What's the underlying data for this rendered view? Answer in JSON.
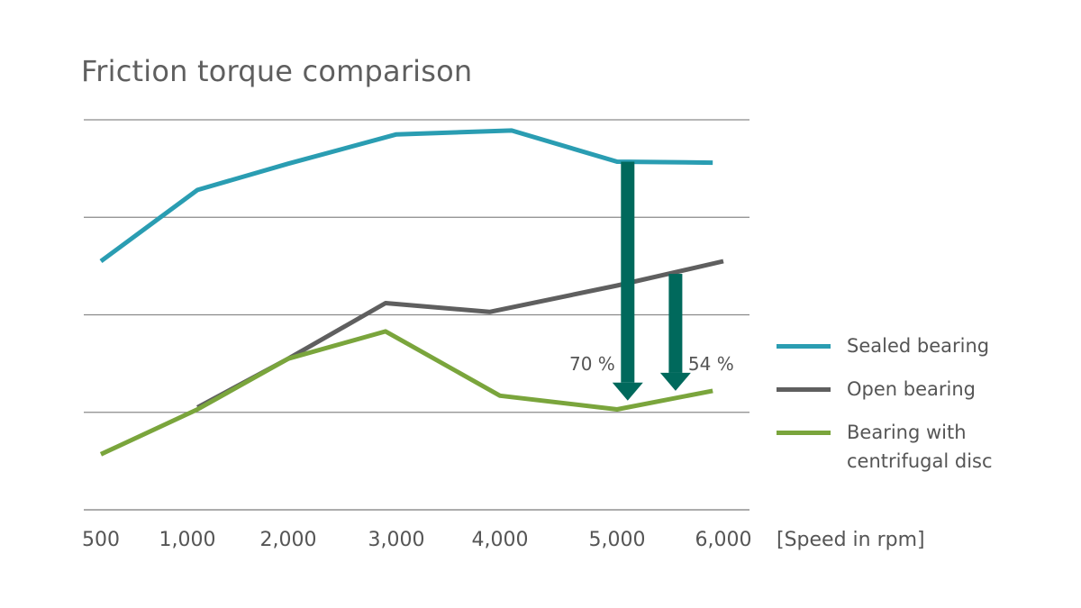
{
  "chart_data": {
    "type": "line",
    "title": "Friction torque comparison",
    "xlabel": "[Speed in rpm]",
    "ylabel": "",
    "categories": [
      "500",
      "1,000",
      "2,000",
      "3,000",
      "4,000",
      "5,000",
      "6,000"
    ],
    "x": [
      500,
      1000,
      2000,
      3000,
      4000,
      5000,
      6000
    ],
    "ylim": [
      0,
      4
    ],
    "y_ticks": [
      0,
      1,
      2,
      3,
      4
    ],
    "y_tick_labels_shown": false,
    "grid": true,
    "legend_position": "right",
    "series": [
      {
        "name": "Sealed bearing",
        "color": "#2a9db2",
        "x": [
          500,
          1100,
          2000,
          3000,
          4100,
          5000,
          5900
        ],
        "values": [
          2.55,
          3.28,
          3.55,
          3.85,
          3.89,
          3.57,
          3.56
        ]
      },
      {
        "name": "Open bearing",
        "color": "#5f5f5f",
        "x": [
          1100,
          2000,
          2900,
          3900,
          5000,
          6000
        ],
        "values": [
          1.05,
          1.55,
          2.12,
          2.03,
          2.3,
          2.55
        ]
      },
      {
        "name": "Bearing with centrifugal disc",
        "color": "#7aa53c",
        "x": [
          500,
          1100,
          2000,
          2900,
          4000,
          5000,
          5900
        ],
        "values": [
          0.57,
          1.03,
          1.55,
          1.83,
          1.17,
          1.03,
          1.22
        ]
      }
    ],
    "annotations": [
      {
        "label": "70 %",
        "x": 5100,
        "from": 3.57,
        "to": 1.12,
        "color": "#00695c"
      },
      {
        "label": "54 %",
        "x": 5550,
        "from": 2.42,
        "to": 1.22,
        "color": "#00695c"
      }
    ]
  }
}
